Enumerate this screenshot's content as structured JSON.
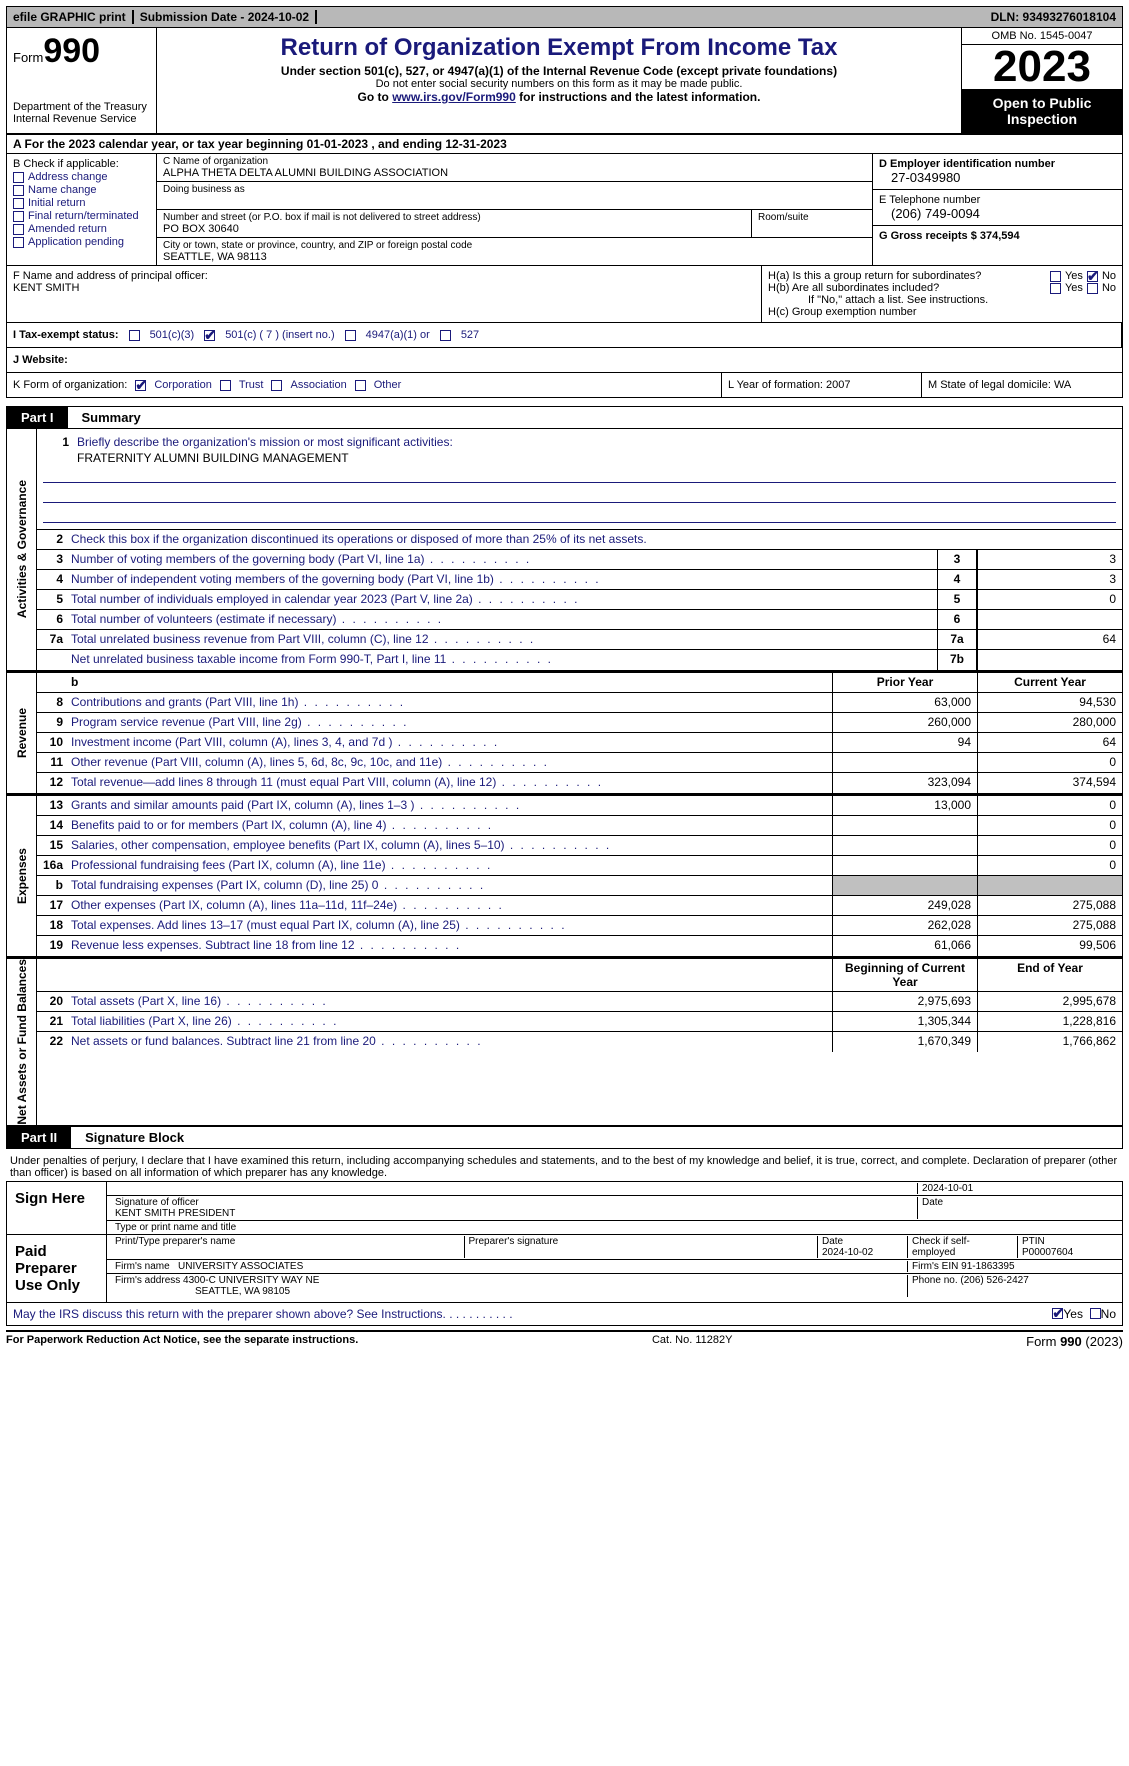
{
  "topbar": {
    "efile": "efile GRAPHIC print",
    "submission": "Submission Date - 2024-10-02",
    "dln": "DLN: 93493276018104"
  },
  "header": {
    "form_prefix": "Form",
    "form_no": "990",
    "dept": "Department of the Treasury Internal Revenue Service",
    "title": "Return of Organization Exempt From Income Tax",
    "sub1": "Under section 501(c), 527, or 4947(a)(1) of the Internal Revenue Code (except private foundations)",
    "sub2": "Do not enter social security numbers on this form as it may be made public.",
    "sub3_pre": "Go to ",
    "sub3_link": "www.irs.gov/Form990",
    "sub3_post": " for instructions and the latest information.",
    "omb": "OMB No. 1545-0047",
    "year": "2023",
    "open": "Open to Public Inspection"
  },
  "rowA": "A   For the 2023 calendar year, or tax year beginning 01-01-2023    , and ending 12-31-2023",
  "boxB": {
    "label": "B Check if applicable:",
    "items": [
      "Address change",
      "Name change",
      "Initial return",
      "Final return/terminated",
      "Amended return",
      "Application pending"
    ]
  },
  "boxC": {
    "name_lbl": "C Name of organization",
    "name": "ALPHA THETA DELTA ALUMNI BUILDING ASSOCIATION",
    "dba_lbl": "Doing business as",
    "addr_lbl": "Number and street (or P.O. box if mail is not delivered to street address)",
    "addr": "PO BOX 30640",
    "room_lbl": "Room/suite",
    "city_lbl": "City or town, state or province, country, and ZIP or foreign postal code",
    "city": "SEATTLE, WA   98113"
  },
  "boxD": {
    "lbl": "D Employer identification number",
    "val": "27-0349980"
  },
  "boxE": {
    "lbl": "E Telephone number",
    "val": "(206) 749-0094"
  },
  "boxG": {
    "lbl": "G Gross receipts $ 374,594"
  },
  "boxF": {
    "lbl": "F  Name and address of principal officer:",
    "val": "KENT SMITH"
  },
  "boxH": {
    "a": "H(a)  Is this a group return for subordinates?",
    "b": "H(b)  Are all subordinates included?",
    "note": "If \"No,\" attach a list. See instructions.",
    "c": "H(c)  Group exemption number"
  },
  "boxI": {
    "lbl": "I   Tax-exempt status:",
    "o1": "501(c)(3)",
    "o2": "501(c) ( 7 ) (insert no.)",
    "o3": "4947(a)(1) or",
    "o4": "527"
  },
  "boxJ": "J   Website:",
  "boxK": {
    "lbl": "K Form of organization:",
    "o1": "Corporation",
    "o2": "Trust",
    "o3": "Association",
    "o4": "Other"
  },
  "boxL": "L Year of formation: 2007",
  "boxM": "M State of legal domicile: WA",
  "part1": {
    "pt": "Part I",
    "pn": "Summary"
  },
  "summary": {
    "gov_label": "Activities & Governance",
    "rev_label": "Revenue",
    "exp_label": "Expenses",
    "net_label": "Net Assets or Fund Balances",
    "line1_lbl": "Briefly describe the organization's mission or most significant activities:",
    "line1_val": "FRATERNITY ALUMNI BUILDING MANAGEMENT",
    "line2": "Check this box       if the organization discontinued its operations or disposed of more than 25% of its net assets.",
    "rows_gov": [
      {
        "n": "3",
        "d": "Number of voting members of the governing body (Part VI, line 1a)",
        "box": "3",
        "v": "3"
      },
      {
        "n": "4",
        "d": "Number of independent voting members of the governing body (Part VI, line 1b)",
        "box": "4",
        "v": "3"
      },
      {
        "n": "5",
        "d": "Total number of individuals employed in calendar year 2023 (Part V, line 2a)",
        "box": "5",
        "v": "0"
      },
      {
        "n": "6",
        "d": "Total number of volunteers (estimate if necessary)",
        "box": "6",
        "v": ""
      },
      {
        "n": "7a",
        "d": "Total unrelated business revenue from Part VIII, column (C), line 12",
        "box": "7a",
        "v": "64"
      },
      {
        "n": "",
        "d": "Net unrelated business taxable income from Form 990-T, Part I, line 11",
        "box": "7b",
        "v": ""
      }
    ],
    "hdr_prior": "Prior Year",
    "hdr_curr": "Current Year",
    "rows_rev": [
      {
        "n": "8",
        "d": "Contributions and grants (Part VIII, line 1h)",
        "p": "63,000",
        "c": "94,530"
      },
      {
        "n": "9",
        "d": "Program service revenue (Part VIII, line 2g)",
        "p": "260,000",
        "c": "280,000"
      },
      {
        "n": "10",
        "d": "Investment income (Part VIII, column (A), lines 3, 4, and 7d )",
        "p": "94",
        "c": "64"
      },
      {
        "n": "11",
        "d": "Other revenue (Part VIII, column (A), lines 5, 6d, 8c, 9c, 10c, and 11e)",
        "p": "",
        "c": "0"
      },
      {
        "n": "12",
        "d": "Total revenue—add lines 8 through 11 (must equal Part VIII, column (A), line 12)",
        "p": "323,094",
        "c": "374,594"
      }
    ],
    "rows_exp": [
      {
        "n": "13",
        "d": "Grants and similar amounts paid (Part IX, column (A), lines 1–3 )",
        "p": "13,000",
        "c": "0"
      },
      {
        "n": "14",
        "d": "Benefits paid to or for members (Part IX, column (A), line 4)",
        "p": "",
        "c": "0"
      },
      {
        "n": "15",
        "d": "Salaries, other compensation, employee benefits (Part IX, column (A), lines 5–10)",
        "p": "",
        "c": "0"
      },
      {
        "n": "16a",
        "d": "Professional fundraising fees (Part IX, column (A), line 11e)",
        "p": "",
        "c": "0"
      },
      {
        "n": "b",
        "d": "Total fundraising expenses (Part IX, column (D), line 25) 0",
        "p": "shade",
        "c": "shade"
      },
      {
        "n": "17",
        "d": "Other expenses (Part IX, column (A), lines 11a–11d, 11f–24e)",
        "p": "249,028",
        "c": "275,088"
      },
      {
        "n": "18",
        "d": "Total expenses. Add lines 13–17 (must equal Part IX, column (A), line 25)",
        "p": "262,028",
        "c": "275,088"
      },
      {
        "n": "19",
        "d": "Revenue less expenses. Subtract line 18 from line 12",
        "p": "61,066",
        "c": "99,506"
      }
    ],
    "hdr_beg": "Beginning of Current Year",
    "hdr_end": "End of Year",
    "rows_net": [
      {
        "n": "20",
        "d": "Total assets (Part X, line 16)",
        "p": "2,975,693",
        "c": "2,995,678"
      },
      {
        "n": "21",
        "d": "Total liabilities (Part X, line 26)",
        "p": "1,305,344",
        "c": "1,228,816"
      },
      {
        "n": "22",
        "d": "Net assets or fund balances. Subtract line 21 from line 20",
        "p": "1,670,349",
        "c": "1,766,862"
      }
    ]
  },
  "part2": {
    "pt": "Part II",
    "pn": "Signature Block"
  },
  "penalties": "Under penalties of perjury, I declare that I have examined this return, including accompanying schedules and statements, and to the best of my knowledge and belief, it is true, correct, and complete. Declaration of preparer (other than officer) is based on all information of which preparer has any knowledge.",
  "sign": {
    "here": "Sign Here",
    "date": "2024-10-01",
    "sig_lbl": "Signature of officer",
    "officer": "KENT SMITH PRESIDENT",
    "type_lbl": "Type or print name and title",
    "date_lbl": "Date"
  },
  "prep": {
    "lbl": "Paid Preparer Use Only",
    "c1": "Print/Type preparer's name",
    "c2": "Preparer's signature",
    "c3": "Date",
    "c3v": "2024-10-02",
    "c4": "Check       if self-employed",
    "c5": "PTIN",
    "c5v": "P00007604",
    "firm_lbl": "Firm's name",
    "firm": "UNIVERSITY ASSOCIATES",
    "ein_lbl": "Firm's EIN",
    "ein": "91-1863395",
    "addr_lbl": "Firm's address",
    "addr1": "4300-C UNIVERSITY WAY NE",
    "addr2": "SEATTLE, WA  98105",
    "phone_lbl": "Phone no.",
    "phone": "(206) 526-2427"
  },
  "discuss": "May the IRS discuss this return with the preparer shown above? See Instructions.   .    .    .    .    .    .    .    .    .    .",
  "footer": {
    "l": "For Paperwork Reduction Act Notice, see the separate instructions.",
    "m": "Cat. No. 11282Y",
    "r_pre": "Form ",
    "r_b": "990",
    "r_post": " (2023)"
  },
  "yn": {
    "yes": "Yes",
    "no": "No"
  }
}
